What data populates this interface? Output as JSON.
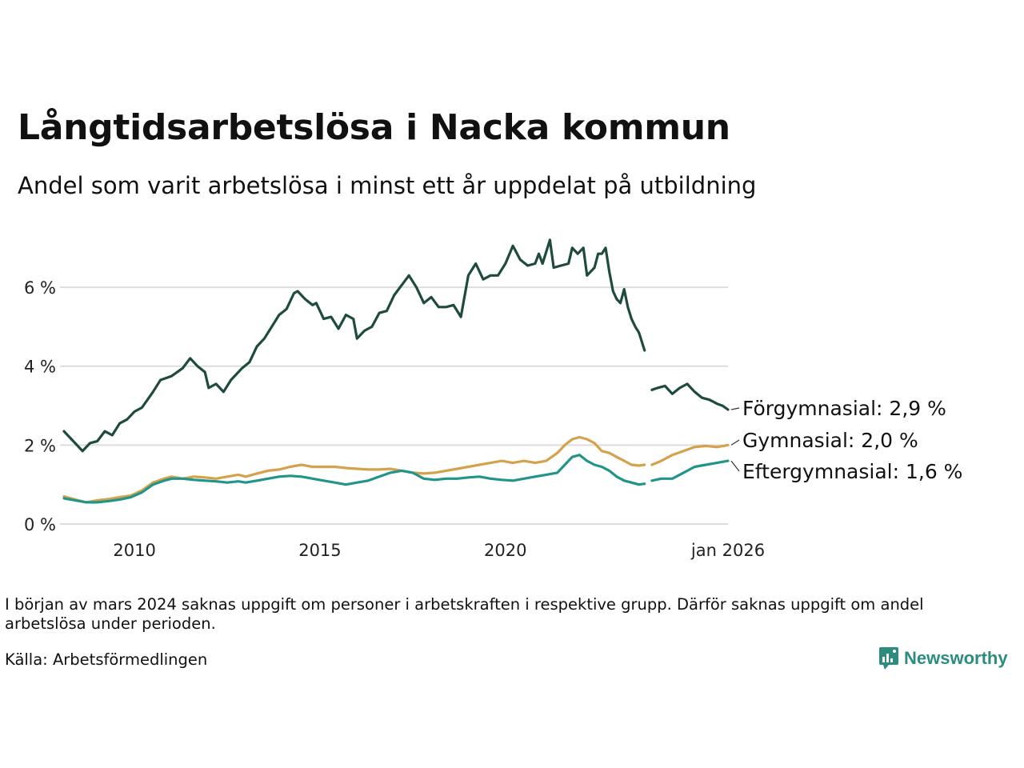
{
  "header": {
    "title": "Långtidsarbetslösa i Nacka kommun",
    "subtitle": "Andel som varit arbetslösa i minst ett år uppdelat på utbildning"
  },
  "footer": {
    "note": "I början av mars 2024 saknas uppgift om personer i arbetskraften i respektive grupp. Därför saknas uppgift om andel arbetslösa under perioden.",
    "source": "Källa: Arbetsförmedlingen",
    "brand": "Newsworthy",
    "brand_icon": "newsworthy-logo-icon"
  },
  "colors": {
    "forgymnasial": "#1f4a40",
    "gymnasial": "#d4a24c",
    "eftergymnasial": "#22958a",
    "grid": "#dddddd",
    "brand": "#2c8c7e"
  },
  "chart_data": {
    "type": "line",
    "title": "Långtidsarbetslösa i Nacka kommun",
    "subtitle": "Andel som varit arbetslösa i minst ett år uppdelat på utbildning",
    "xlabel": "",
    "ylabel": "",
    "ylim": [
      0,
      7.3
    ],
    "yticks": [
      0,
      2,
      4,
      6
    ],
    "ytick_labels": [
      "0 %",
      "2 %",
      "4 %",
      "6 %"
    ],
    "xlim": [
      2008.1,
      2026.0
    ],
    "xticks": [
      2010,
      2015,
      2020,
      2026.0
    ],
    "xtick_labels": [
      "2010",
      "2015",
      "2020",
      "jan 2026"
    ],
    "grid": true,
    "gap": {
      "start": 2023.75,
      "end": 2023.95,
      "reason": "missing data"
    },
    "series": [
      {
        "name": "Förgymnasial",
        "end_label": "Förgymnasial: 2,9 %",
        "color": "#1f4a40",
        "points": [
          [
            2008.1,
            2.35
          ],
          [
            2008.4,
            2.05
          ],
          [
            2008.6,
            1.85
          ],
          [
            2008.8,
            2.05
          ],
          [
            2009.0,
            2.1
          ],
          [
            2009.2,
            2.35
          ],
          [
            2009.4,
            2.25
          ],
          [
            2009.6,
            2.55
          ],
          [
            2009.8,
            2.65
          ],
          [
            2010.0,
            2.85
          ],
          [
            2010.2,
            2.95
          ],
          [
            2010.5,
            3.35
          ],
          [
            2010.7,
            3.65
          ],
          [
            2011.0,
            3.75
          ],
          [
            2011.3,
            3.95
          ],
          [
            2011.5,
            4.2
          ],
          [
            2011.7,
            4.0
          ],
          [
            2011.9,
            3.85
          ],
          [
            2012.0,
            3.45
          ],
          [
            2012.2,
            3.55
          ],
          [
            2012.4,
            3.35
          ],
          [
            2012.6,
            3.65
          ],
          [
            2012.9,
            3.95
          ],
          [
            2013.1,
            4.1
          ],
          [
            2013.3,
            4.5
          ],
          [
            2013.5,
            4.7
          ],
          [
            2013.7,
            5.0
          ],
          [
            2013.9,
            5.3
          ],
          [
            2014.1,
            5.45
          ],
          [
            2014.3,
            5.85
          ],
          [
            2014.4,
            5.9
          ],
          [
            2014.6,
            5.7
          ],
          [
            2014.8,
            5.55
          ],
          [
            2014.9,
            5.6
          ],
          [
            2015.1,
            5.2
          ],
          [
            2015.3,
            5.25
          ],
          [
            2015.5,
            4.95
          ],
          [
            2015.7,
            5.3
          ],
          [
            2015.9,
            5.2
          ],
          [
            2016.0,
            4.7
          ],
          [
            2016.2,
            4.9
          ],
          [
            2016.4,
            5.0
          ],
          [
            2016.6,
            5.35
          ],
          [
            2016.8,
            5.4
          ],
          [
            2017.0,
            5.8
          ],
          [
            2017.2,
            6.05
          ],
          [
            2017.4,
            6.3
          ],
          [
            2017.6,
            6.0
          ],
          [
            2017.8,
            5.6
          ],
          [
            2018.0,
            5.75
          ],
          [
            2018.2,
            5.5
          ],
          [
            2018.4,
            5.5
          ],
          [
            2018.6,
            5.55
          ],
          [
            2018.8,
            5.25
          ],
          [
            2019.0,
            6.3
          ],
          [
            2019.2,
            6.6
          ],
          [
            2019.4,
            6.2
          ],
          [
            2019.6,
            6.3
          ],
          [
            2019.8,
            6.3
          ],
          [
            2020.0,
            6.6
          ],
          [
            2020.2,
            7.05
          ],
          [
            2020.4,
            6.7
          ],
          [
            2020.6,
            6.55
          ],
          [
            2020.8,
            6.6
          ],
          [
            2020.9,
            6.85
          ],
          [
            2021.0,
            6.6
          ],
          [
            2021.2,
            7.2
          ],
          [
            2021.3,
            6.5
          ],
          [
            2021.5,
            6.55
          ],
          [
            2021.7,
            6.6
          ],
          [
            2021.8,
            7.0
          ],
          [
            2021.95,
            6.85
          ],
          [
            2022.1,
            7.0
          ],
          [
            2022.2,
            6.3
          ],
          [
            2022.4,
            6.5
          ],
          [
            2022.5,
            6.85
          ],
          [
            2022.6,
            6.85
          ],
          [
            2022.7,
            7.0
          ],
          [
            2022.8,
            6.4
          ],
          [
            2022.9,
            5.9
          ],
          [
            2023.0,
            5.7
          ],
          [
            2023.1,
            5.6
          ],
          [
            2023.2,
            5.95
          ],
          [
            2023.3,
            5.5
          ],
          [
            2023.4,
            5.2
          ],
          [
            2023.5,
            5.0
          ],
          [
            2023.6,
            4.85
          ],
          [
            2023.75,
            4.4
          ],
          [
            2023.95,
            3.4
          ],
          [
            2024.1,
            3.45
          ],
          [
            2024.3,
            3.5
          ],
          [
            2024.5,
            3.3
          ],
          [
            2024.7,
            3.45
          ],
          [
            2024.9,
            3.55
          ],
          [
            2025.1,
            3.35
          ],
          [
            2025.3,
            3.2
          ],
          [
            2025.5,
            3.15
          ],
          [
            2025.7,
            3.05
          ],
          [
            2025.85,
            3.0
          ],
          [
            2026.0,
            2.9
          ]
        ]
      },
      {
        "name": "Gymnasial",
        "end_label": "Gymnasial: 2,0 %",
        "color": "#d4a24c",
        "points": [
          [
            2008.1,
            0.7
          ],
          [
            2008.4,
            0.62
          ],
          [
            2008.7,
            0.55
          ],
          [
            2009.0,
            0.6
          ],
          [
            2009.3,
            0.63
          ],
          [
            2009.6,
            0.68
          ],
          [
            2009.9,
            0.72
          ],
          [
            2010.2,
            0.85
          ],
          [
            2010.5,
            1.05
          ],
          [
            2010.8,
            1.15
          ],
          [
            2011.0,
            1.2
          ],
          [
            2011.3,
            1.15
          ],
          [
            2011.6,
            1.2
          ],
          [
            2011.9,
            1.18
          ],
          [
            2012.2,
            1.15
          ],
          [
            2012.5,
            1.2
          ],
          [
            2012.8,
            1.25
          ],
          [
            2013.0,
            1.2
          ],
          [
            2013.3,
            1.28
          ],
          [
            2013.6,
            1.35
          ],
          [
            2013.9,
            1.38
          ],
          [
            2014.2,
            1.45
          ],
          [
            2014.5,
            1.5
          ],
          [
            2014.8,
            1.45
          ],
          [
            2015.1,
            1.45
          ],
          [
            2015.4,
            1.45
          ],
          [
            2015.7,
            1.42
          ],
          [
            2016.0,
            1.4
          ],
          [
            2016.3,
            1.38
          ],
          [
            2016.6,
            1.38
          ],
          [
            2016.9,
            1.4
          ],
          [
            2017.2,
            1.35
          ],
          [
            2017.5,
            1.3
          ],
          [
            2017.8,
            1.28
          ],
          [
            2018.1,
            1.3
          ],
          [
            2018.4,
            1.35
          ],
          [
            2018.7,
            1.4
          ],
          [
            2019.0,
            1.45
          ],
          [
            2019.3,
            1.5
          ],
          [
            2019.6,
            1.55
          ],
          [
            2019.9,
            1.6
          ],
          [
            2020.2,
            1.55
          ],
          [
            2020.5,
            1.6
          ],
          [
            2020.8,
            1.55
          ],
          [
            2021.1,
            1.6
          ],
          [
            2021.4,
            1.8
          ],
          [
            2021.6,
            2.0
          ],
          [
            2021.8,
            2.15
          ],
          [
            2022.0,
            2.2
          ],
          [
            2022.2,
            2.15
          ],
          [
            2022.4,
            2.05
          ],
          [
            2022.6,
            1.85
          ],
          [
            2022.8,
            1.8
          ],
          [
            2023.0,
            1.7
          ],
          [
            2023.2,
            1.6
          ],
          [
            2023.4,
            1.5
          ],
          [
            2023.6,
            1.48
          ],
          [
            2023.75,
            1.5
          ],
          [
            2023.95,
            1.5
          ],
          [
            2024.2,
            1.6
          ],
          [
            2024.5,
            1.75
          ],
          [
            2024.8,
            1.85
          ],
          [
            2025.1,
            1.95
          ],
          [
            2025.4,
            1.98
          ],
          [
            2025.7,
            1.95
          ],
          [
            2026.0,
            2.0
          ]
        ]
      },
      {
        "name": "Eftergymnasial",
        "end_label": "Eftergymnasial: 1,6 %",
        "color": "#22958a",
        "points": [
          [
            2008.1,
            0.65
          ],
          [
            2008.4,
            0.6
          ],
          [
            2008.7,
            0.55
          ],
          [
            2009.0,
            0.55
          ],
          [
            2009.3,
            0.58
          ],
          [
            2009.6,
            0.62
          ],
          [
            2009.9,
            0.68
          ],
          [
            2010.2,
            0.8
          ],
          [
            2010.5,
            1.0
          ],
          [
            2010.8,
            1.1
          ],
          [
            2011.0,
            1.15
          ],
          [
            2011.3,
            1.15
          ],
          [
            2011.6,
            1.12
          ],
          [
            2011.9,
            1.1
          ],
          [
            2012.2,
            1.08
          ],
          [
            2012.5,
            1.05
          ],
          [
            2012.8,
            1.08
          ],
          [
            2013.0,
            1.05
          ],
          [
            2013.3,
            1.1
          ],
          [
            2013.6,
            1.15
          ],
          [
            2013.9,
            1.2
          ],
          [
            2014.2,
            1.22
          ],
          [
            2014.5,
            1.2
          ],
          [
            2014.8,
            1.15
          ],
          [
            2015.1,
            1.1
          ],
          [
            2015.4,
            1.05
          ],
          [
            2015.7,
            1.0
          ],
          [
            2016.0,
            1.05
          ],
          [
            2016.3,
            1.1
          ],
          [
            2016.6,
            1.2
          ],
          [
            2016.9,
            1.3
          ],
          [
            2017.2,
            1.35
          ],
          [
            2017.5,
            1.3
          ],
          [
            2017.8,
            1.15
          ],
          [
            2018.1,
            1.12
          ],
          [
            2018.4,
            1.15
          ],
          [
            2018.7,
            1.15
          ],
          [
            2019.0,
            1.18
          ],
          [
            2019.3,
            1.2
          ],
          [
            2019.6,
            1.15
          ],
          [
            2019.9,
            1.12
          ],
          [
            2020.2,
            1.1
          ],
          [
            2020.5,
            1.15
          ],
          [
            2020.8,
            1.2
          ],
          [
            2021.1,
            1.25
          ],
          [
            2021.4,
            1.3
          ],
          [
            2021.6,
            1.5
          ],
          [
            2021.8,
            1.7
          ],
          [
            2022.0,
            1.75
          ],
          [
            2022.2,
            1.6
          ],
          [
            2022.4,
            1.5
          ],
          [
            2022.6,
            1.45
          ],
          [
            2022.8,
            1.35
          ],
          [
            2023.0,
            1.2
          ],
          [
            2023.2,
            1.1
          ],
          [
            2023.4,
            1.05
          ],
          [
            2023.6,
            1.0
          ],
          [
            2023.75,
            1.02
          ],
          [
            2023.95,
            1.1
          ],
          [
            2024.2,
            1.15
          ],
          [
            2024.5,
            1.15
          ],
          [
            2024.8,
            1.3
          ],
          [
            2025.1,
            1.45
          ],
          [
            2025.4,
            1.5
          ],
          [
            2025.7,
            1.55
          ],
          [
            2026.0,
            1.6
          ]
        ]
      }
    ]
  }
}
